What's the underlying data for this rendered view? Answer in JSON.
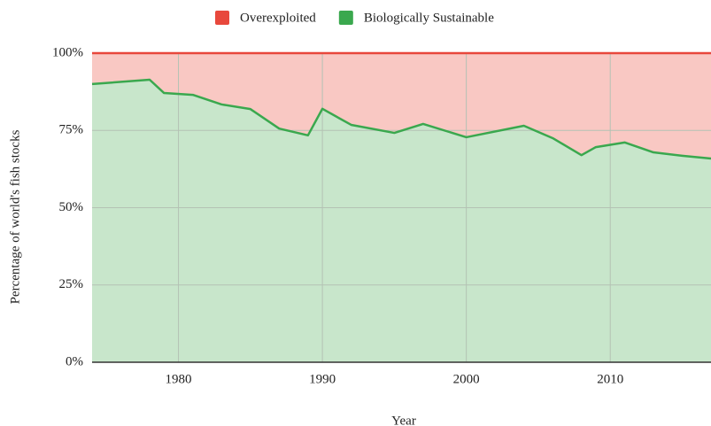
{
  "chart_data": {
    "type": "stacked_area",
    "x_label": "Year",
    "y_label": "Percentage of world's fish stocks",
    "x": [
      1974,
      1978,
      1979,
      1981,
      1983,
      1985,
      1987,
      1989,
      1990,
      1992,
      1995,
      1997,
      2000,
      2004,
      2006,
      2008,
      2009,
      2011,
      2013,
      2015,
      2017
    ],
    "series": [
      {
        "name": "Overexploited",
        "color": "#e8483c",
        "fill": "#f9c8c3",
        "values": [
          10.0,
          8.6,
          12.9,
          13.5,
          16.6,
          18.1,
          24.4,
          26.6,
          18.0,
          23.2,
          25.8,
          22.9,
          27.2,
          23.5,
          27.5,
          33.0,
          30.4,
          28.9,
          32.1,
          33.2,
          34.1
        ]
      },
      {
        "name": "Biologically Sustainable",
        "color": "#3aa84e",
        "fill": "#c8e6cb",
        "values": [
          90.0,
          91.4,
          87.1,
          86.5,
          83.4,
          81.9,
          75.6,
          73.4,
          82.0,
          76.8,
          74.2,
          77.1,
          72.8,
          76.5,
          72.5,
          67.0,
          69.6,
          71.1,
          67.9,
          66.8,
          65.9
        ]
      }
    ],
    "xlim": [
      1974,
      2017
    ],
    "xticks": [
      1980,
      1990,
      2000,
      2010
    ],
    "ylim": [
      0,
      100
    ],
    "yticks": [
      {
        "value": 0,
        "label": "0%"
      },
      {
        "value": 25,
        "label": "25%"
      },
      {
        "value": 50,
        "label": "50%"
      },
      {
        "value": 75,
        "label": "75%"
      },
      {
        "value": 100,
        "label": "100%"
      }
    ],
    "grid": true,
    "legend": "top"
  }
}
